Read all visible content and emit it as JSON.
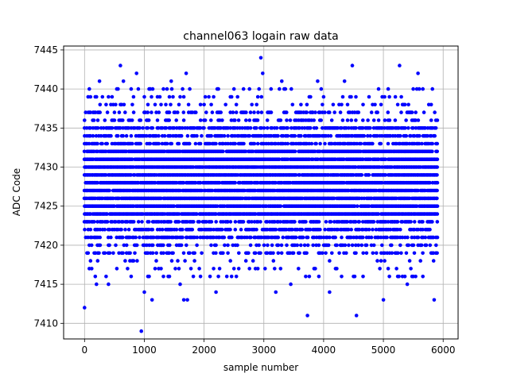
{
  "chart_data": {
    "type": "scatter",
    "title": "channel063 logain raw data",
    "xlabel": "sample number",
    "ylabel": "ADC Code",
    "xlim": [
      -350,
      6250
    ],
    "ylim": [
      7408,
      7445.5
    ],
    "x_ticks": [
      0,
      1000,
      2000,
      3000,
      4000,
      5000,
      6000
    ],
    "y_ticks": [
      7410,
      7415,
      7420,
      7425,
      7430,
      7435,
      7440,
      7445
    ],
    "grid": true,
    "marker_color": "#0000ff",
    "sample_range": [
      0,
      5900
    ],
    "core_range": [
      7419,
      7437
    ],
    "outliers": [
      {
        "x": 0,
        "y": 7412
      },
      {
        "x": 600,
        "y": 7443
      },
      {
        "x": 870,
        "y": 7442
      },
      {
        "x": 950,
        "y": 7409
      },
      {
        "x": 1000,
        "y": 7414
      },
      {
        "x": 1130,
        "y": 7413
      },
      {
        "x": 1450,
        "y": 7441
      },
      {
        "x": 1700,
        "y": 7442
      },
      {
        "x": 1660,
        "y": 7413
      },
      {
        "x": 1720,
        "y": 7413
      },
      {
        "x": 2200,
        "y": 7414
      },
      {
        "x": 2950,
        "y": 7444
      },
      {
        "x": 2980,
        "y": 7442
      },
      {
        "x": 3200,
        "y": 7414
      },
      {
        "x": 3730,
        "y": 7411
      },
      {
        "x": 4100,
        "y": 7414
      },
      {
        "x": 4480,
        "y": 7443
      },
      {
        "x": 4550,
        "y": 7411
      },
      {
        "x": 5000,
        "y": 7413
      },
      {
        "x": 5270,
        "y": 7443
      },
      {
        "x": 5580,
        "y": 7442
      },
      {
        "x": 5850,
        "y": 7413
      },
      {
        "x": 200,
        "y": 7415
      },
      {
        "x": 400,
        "y": 7415
      },
      {
        "x": 1600,
        "y": 7415
      },
      {
        "x": 3450,
        "y": 7415
      },
      {
        "x": 5400,
        "y": 7415
      },
      {
        "x": 3300,
        "y": 7441
      },
      {
        "x": 3900,
        "y": 7441
      },
      {
        "x": 4350,
        "y": 7441
      },
      {
        "x": 250,
        "y": 7441
      },
      {
        "x": 650,
        "y": 7441
      }
    ]
  }
}
